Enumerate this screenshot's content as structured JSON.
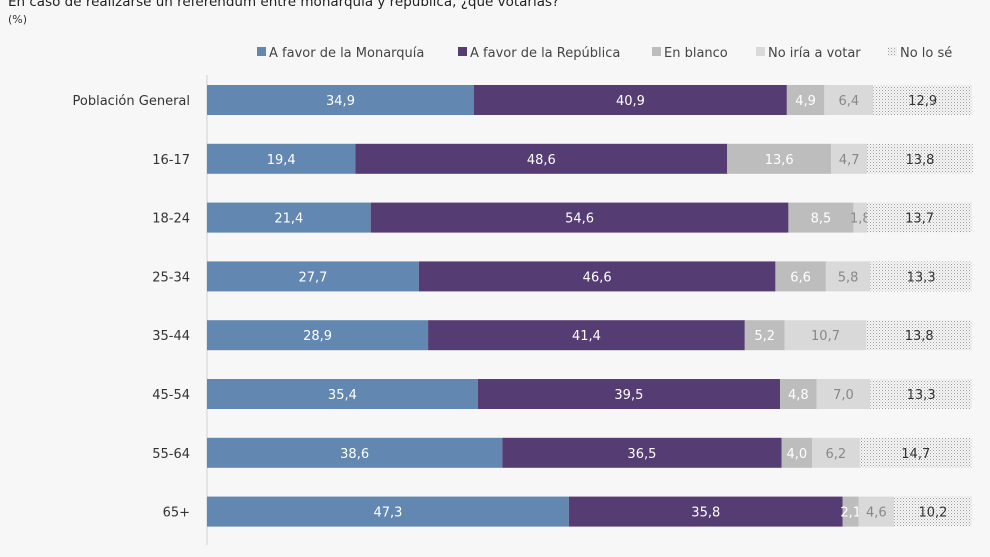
{
  "chart_data": {
    "type": "bar",
    "orientation": "horizontal",
    "stacked": true,
    "title": "En caso de realizarse un referéndum entre monarquía y república, ¿qué votarías?",
    "subtitle": "(%)",
    "legend_position": "top-right",
    "grid": false,
    "xlim": [
      0,
      100
    ],
    "categories": [
      "Población General",
      "16-17",
      "18-24",
      "25-34",
      "35-44",
      "45-54",
      "55-64",
      "65+"
    ],
    "series": [
      {
        "name": "A favor de la Monarquía",
        "color": "#6287b0",
        "label_color": "#ffffff",
        "values": [
          34.9,
          19.4,
          21.4,
          27.7,
          28.9,
          35.4,
          38.6,
          47.3
        ]
      },
      {
        "name": "A favor de la República",
        "color": "#553c73",
        "label_color": "#ffffff",
        "values": [
          40.9,
          48.6,
          54.6,
          46.6,
          41.4,
          39.5,
          36.5,
          35.8
        ]
      },
      {
        "name": "En blanco",
        "color": "#bdbdbd",
        "label_color": "#ffffff",
        "values": [
          4.9,
          13.6,
          8.5,
          6.6,
          5.2,
          4.8,
          4.0,
          2.1
        ]
      },
      {
        "name": "No iría a votar",
        "color": "#d9d9d9",
        "label_color": "#888888",
        "values": [
          6.4,
          4.7,
          1.8,
          5.8,
          10.7,
          7.0,
          6.2,
          4.6
        ]
      },
      {
        "name": "No lo sé",
        "color": "dotted",
        "label_color": "#333333",
        "values": [
          12.9,
          13.8,
          13.7,
          13.3,
          13.8,
          13.3,
          14.7,
          10.2
        ]
      }
    ]
  }
}
